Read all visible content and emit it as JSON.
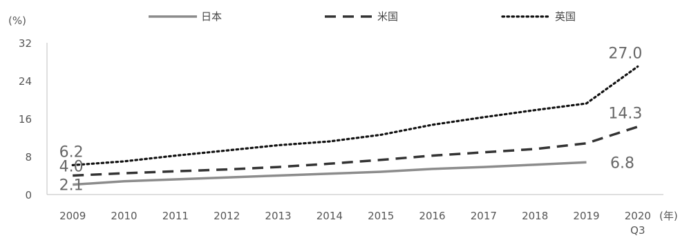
{
  "chart_data": {
    "type": "line",
    "title": "",
    "ylabel": "(%)",
    "xlabel": "(年)",
    "ylim": [
      0,
      32
    ],
    "yticks": [
      "0",
      "8",
      "16",
      "24",
      "32"
    ],
    "categories": [
      "2009",
      "2010",
      "2011",
      "2012",
      "2013",
      "2014",
      "2015",
      "2016",
      "2017",
      "2018",
      "2019",
      "2020"
    ],
    "category_sublabels": [
      "",
      "",
      "",
      "",
      "",
      "",
      "",
      "",
      "",
      "",
      "",
      "Q3"
    ],
    "grid": false,
    "legend_position": "top",
    "series": [
      {
        "name": "日本",
        "style": "solid",
        "color": "#8c8c8c",
        "values": [
          2.1,
          2.8,
          3.2,
          3.6,
          4.0,
          4.4,
          4.8,
          5.4,
          5.8,
          6.3,
          6.8,
          null
        ],
        "labels": [
          {
            "index": 0,
            "text": "2.1"
          },
          {
            "index": 10,
            "text": "6.8"
          }
        ]
      },
      {
        "name": "米国",
        "style": "dashed",
        "color": "#333333",
        "values": [
          4.0,
          4.5,
          4.9,
          5.3,
          5.8,
          6.5,
          7.3,
          8.2,
          8.9,
          9.6,
          10.8,
          14.3
        ],
        "labels": [
          {
            "index": 0,
            "text": "4.0"
          },
          {
            "index": 11,
            "text": "14.3"
          }
        ]
      },
      {
        "name": "英国",
        "style": "dotted",
        "color": "#111111",
        "values": [
          6.2,
          7.0,
          8.2,
          9.3,
          10.4,
          11.2,
          12.6,
          14.7,
          16.3,
          17.8,
          19.2,
          27.0
        ],
        "labels": [
          {
            "index": 0,
            "text": "6.2"
          },
          {
            "index": 11,
            "text": "27.0"
          }
        ]
      }
    ]
  }
}
